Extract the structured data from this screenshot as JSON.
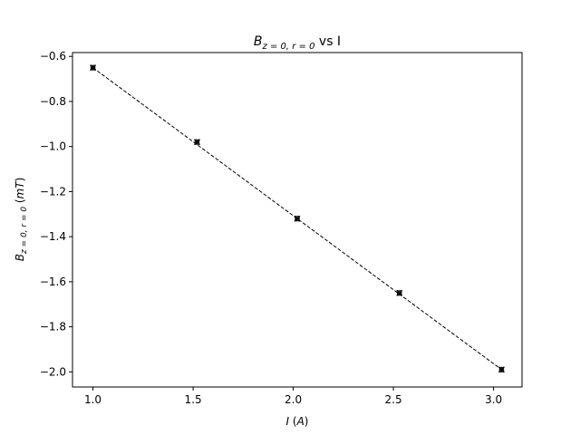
{
  "chart_data": {
    "type": "scatter",
    "title": {
      "main": "B",
      "sub": "z = 0, r = 0",
      "suffix": " vs I"
    },
    "xlabel": {
      "symbol": "I",
      "unit_open": " (",
      "unit": "A",
      "unit_close": ")"
    },
    "ylabel": {
      "symbol": "B",
      "sub": "z = 0, r = 0",
      "unit_open": " (",
      "unit": "mT",
      "unit_close": ")"
    },
    "xlim": [
      0.898,
      3.142
    ],
    "ylim": [
      -2.067,
      -0.583
    ],
    "xticks": [
      1.0,
      1.5,
      2.0,
      2.5,
      3.0
    ],
    "xtick_labels": [
      "1.0",
      "1.5",
      "2.0",
      "2.5",
      "3.0"
    ],
    "yticks": [
      -0.6,
      -0.8,
      -1.0,
      -1.2,
      -1.4,
      -1.6,
      -1.8,
      -2.0
    ],
    "ytick_labels": [
      "−0.6",
      "−0.8",
      "−1.0",
      "−1.2",
      "−1.4",
      "−1.6",
      "−1.8",
      "−2.0"
    ],
    "grid": false,
    "series": [
      {
        "marker": "x",
        "color": "#000000",
        "x": [
          1.0,
          1.52,
          2.02,
          2.53,
          3.04
        ],
        "y": [
          -0.65,
          -0.98,
          -1.32,
          -1.65,
          -1.99
        ],
        "xerr": [
          0.01,
          0.01,
          0.01,
          0.01,
          0.01
        ],
        "yerr": [
          0.01,
          0.01,
          0.01,
          0.01,
          0.01
        ]
      }
    ],
    "fit_line": {
      "style": "dashed",
      "color": "#000000",
      "x": [
        1.0,
        3.04
      ],
      "y": [
        -0.65,
        -1.99
      ]
    }
  }
}
